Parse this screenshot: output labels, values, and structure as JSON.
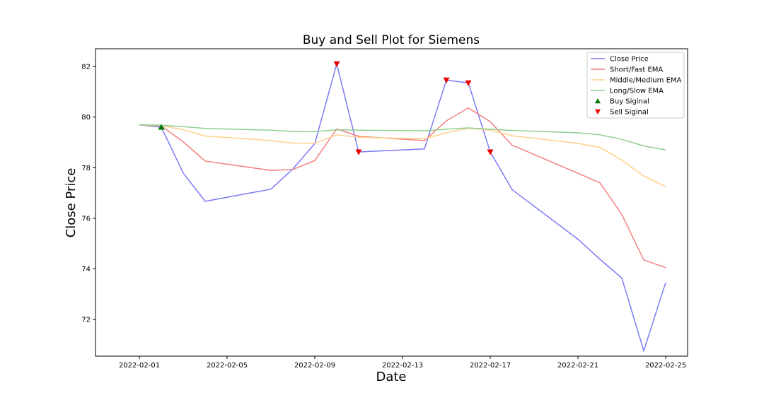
{
  "chart_data": {
    "type": "line",
    "title": "Buy and Sell Plot for Siemens",
    "xlabel": "Date",
    "ylabel": "Close Price",
    "x_tick_labels": [
      "2022-02-01",
      "2022-02-05",
      "2022-02-09",
      "2022-02-13",
      "2022-02-17",
      "2022-02-21",
      "2022-02-25"
    ],
    "y_ticks": [
      72,
      74,
      76,
      78,
      80,
      82
    ],
    "xlim": [
      "2022-01-30",
      "2022-02-26"
    ],
    "ylim": [
      70.55,
      82.7
    ],
    "grid": false,
    "legend_position": "top-right",
    "dates": [
      "2022-02-01",
      "2022-02-02",
      "2022-02-03",
      "2022-02-04",
      "2022-02-07",
      "2022-02-08",
      "2022-02-09",
      "2022-02-10",
      "2022-02-11",
      "2022-02-14",
      "2022-02-15",
      "2022-02-16",
      "2022-02-17",
      "2022-02-18",
      "2022-02-21",
      "2022-02-22",
      "2022-02-23",
      "2022-02-24",
      "2022-02-25"
    ],
    "series": [
      {
        "name": "Close Price",
        "color": "#7b7bf5",
        "values": [
          79.69,
          79.6,
          77.79,
          76.67,
          77.15,
          77.95,
          78.95,
          82.1,
          78.62,
          78.74,
          81.46,
          81.35,
          78.62,
          77.13,
          75.17,
          74.38,
          73.64,
          70.76,
          73.46
        ]
      },
      {
        "name": "Short/Fast EMA",
        "color": "#f47f7f",
        "values": [
          79.69,
          79.65,
          79.02,
          78.26,
          77.89,
          77.93,
          78.28,
          79.53,
          79.24,
          79.07,
          79.85,
          80.36,
          79.82,
          78.89,
          77.78,
          77.4,
          76.15,
          74.35,
          74.05
        ]
      },
      {
        "name": "Middle/Medium EMA",
        "color": "#ffd08a",
        "values": [
          79.69,
          79.66,
          79.5,
          79.25,
          79.07,
          78.97,
          78.96,
          79.3,
          79.2,
          79.14,
          79.38,
          79.56,
          79.48,
          79.26,
          78.96,
          78.8,
          78.3,
          77.67,
          77.25
        ]
      },
      {
        "name": "Long/Slow EMA",
        "color": "#8fce8f",
        "values": [
          79.69,
          79.68,
          79.62,
          79.55,
          79.48,
          79.43,
          79.42,
          79.5,
          79.48,
          79.46,
          79.52,
          79.57,
          79.52,
          79.47,
          79.38,
          79.3,
          79.12,
          78.86,
          78.7
        ]
      }
    ],
    "buy_signals": [
      {
        "date": "2022-02-02",
        "value": 79.6
      }
    ],
    "sell_signals": [
      {
        "date": "2022-02-10",
        "value": 82.1
      },
      {
        "date": "2022-02-11",
        "value": 78.62
      },
      {
        "date": "2022-02-15",
        "value": 81.46
      },
      {
        "date": "2022-02-16",
        "value": 81.35
      },
      {
        "date": "2022-02-17",
        "value": 78.62
      }
    ],
    "legend": [
      {
        "label": "Close Price",
        "kind": "line",
        "color": "#7b7bf5"
      },
      {
        "label": "Short/Fast EMA",
        "kind": "line",
        "color": "#f47f7f"
      },
      {
        "label": "Middle/Medium EMA",
        "kind": "line",
        "color": "#ffd08a"
      },
      {
        "label": "Long/Slow EMA",
        "kind": "line",
        "color": "#8fce8f"
      },
      {
        "label": "Buy Siginal",
        "kind": "marker-up",
        "color": "#007700"
      },
      {
        "label": "Sell Siginal",
        "kind": "marker-down",
        "color": "#ee0000"
      }
    ]
  }
}
